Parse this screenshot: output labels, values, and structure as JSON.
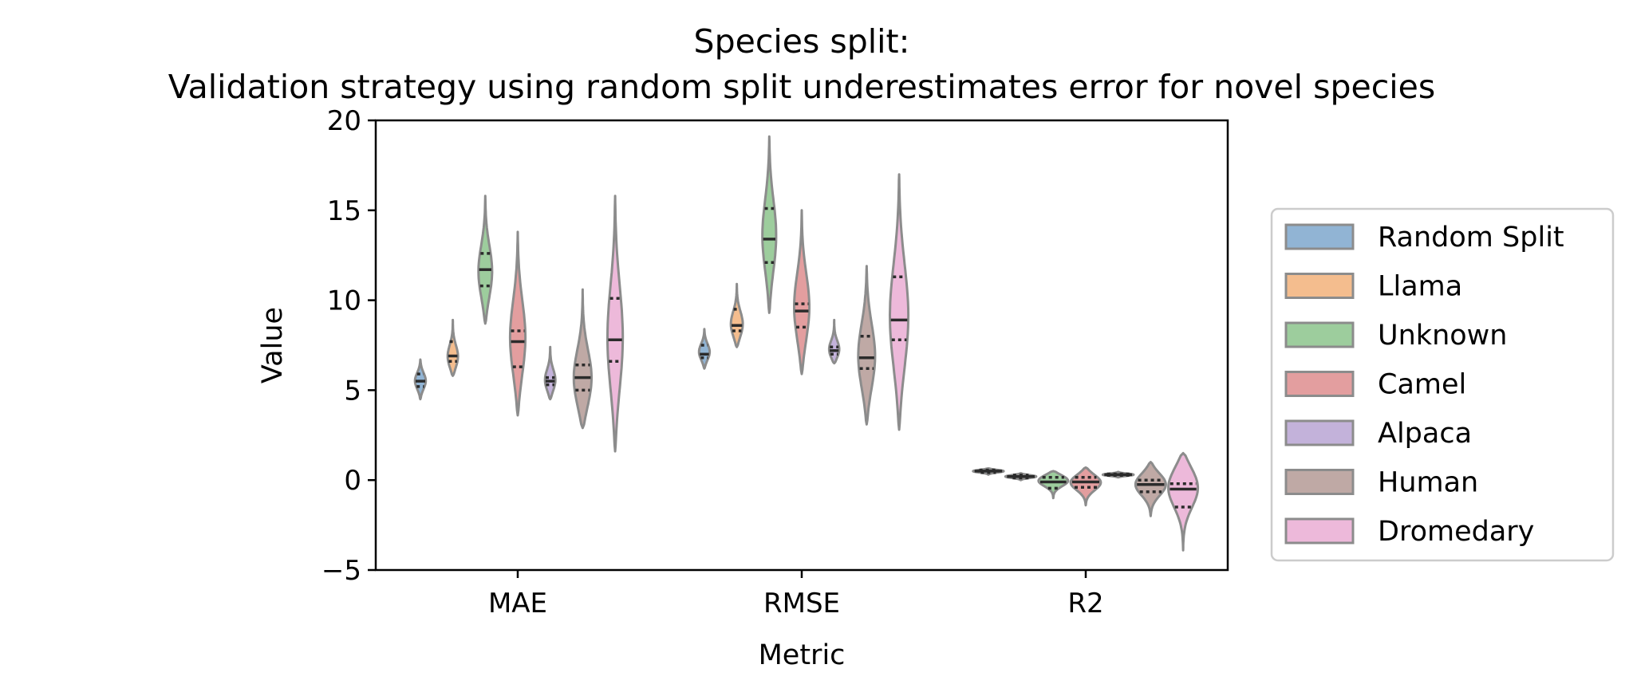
{
  "chart_data": {
    "type": "violin",
    "title_line1": "Species split:",
    "title_line2": "Validation strategy using random split underestimates error for novel species",
    "xlabel": "Metric",
    "ylabel": "Value",
    "categories": [
      "MAE",
      "RMSE",
      "R2"
    ],
    "ylim": [
      -5,
      20
    ],
    "yticks": [
      {
        "value": -5,
        "label": "−5"
      },
      {
        "value": 0,
        "label": "0"
      },
      {
        "value": 5,
        "label": "5"
      },
      {
        "value": 10,
        "label": "10"
      },
      {
        "value": 15,
        "label": "15"
      },
      {
        "value": 20,
        "label": "20"
      }
    ],
    "grid": false,
    "legend_position": "right",
    "series": [
      {
        "name": "Random Split",
        "color": "#7ea7cc",
        "violins": [
          {
            "min": 4.5,
            "max": 6.7,
            "mode": 5.5,
            "q1": 5.2,
            "median": 5.5,
            "q3": 5.9,
            "widthFrac": 0.35
          },
          {
            "min": 6.2,
            "max": 8.4,
            "mode": 7.1,
            "q1": 6.8,
            "median": 7.0,
            "q3": 7.5,
            "widthFrac": 0.35
          },
          {
            "min": 0.3,
            "max": 0.65,
            "mode": 0.5,
            "q1": 0.42,
            "median": 0.5,
            "q3": 0.56,
            "widthFrac": 1.0
          }
        ]
      },
      {
        "name": "Llama",
        "color": "#f2b27a",
        "violins": [
          {
            "min": 5.8,
            "max": 8.9,
            "mode": 6.8,
            "q1": 6.6,
            "median": 6.9,
            "q3": 7.7,
            "widthFrac": 0.35
          },
          {
            "min": 7.4,
            "max": 10.9,
            "mode": 8.6,
            "q1": 8.3,
            "median": 8.6,
            "q3": 9.5,
            "widthFrac": 0.4
          },
          {
            "min": 0.0,
            "max": 0.38,
            "mode": 0.2,
            "q1": 0.12,
            "median": 0.2,
            "q3": 0.28,
            "widthFrac": 1.0
          }
        ]
      },
      {
        "name": "Unknown",
        "color": "#8cc48c",
        "violins": [
          {
            "min": 8.7,
            "max": 15.8,
            "mode": 11.5,
            "q1": 10.8,
            "median": 11.7,
            "q3": 12.6,
            "widthFrac": 0.45
          },
          {
            "min": 9.3,
            "max": 19.1,
            "mode": 13.5,
            "q1": 12.1,
            "median": 13.4,
            "q3": 15.1,
            "widthFrac": 0.45
          },
          {
            "min": -1.0,
            "max": 0.5,
            "mode": 0.0,
            "q1": -0.45,
            "median": -0.1,
            "q3": 0.15,
            "widthFrac": 1.0
          }
        ]
      },
      {
        "name": "Camel",
        "color": "#de8d8e",
        "violins": [
          {
            "min": 3.6,
            "max": 13.8,
            "mode": 7.8,
            "q1": 6.3,
            "median": 7.7,
            "q3": 8.3,
            "widthFrac": 0.5
          },
          {
            "min": 5.9,
            "max": 15.0,
            "mode": 9.5,
            "q1": 8.5,
            "median": 9.4,
            "q3": 9.8,
            "widthFrac": 0.5
          },
          {
            "min": -1.4,
            "max": 0.7,
            "mode": -0.1,
            "q1": -0.4,
            "median": -0.1,
            "q3": 0.15,
            "widthFrac": 1.0
          }
        ]
      },
      {
        "name": "Alpaca",
        "color": "#b9a4d3",
        "violins": [
          {
            "min": 4.5,
            "max": 7.4,
            "mode": 5.5,
            "q1": 5.3,
            "median": 5.5,
            "q3": 5.7,
            "widthFrac": 0.35
          },
          {
            "min": 6.5,
            "max": 8.9,
            "mode": 7.2,
            "q1": 7.0,
            "median": 7.2,
            "q3": 7.4,
            "widthFrac": 0.35
          },
          {
            "min": 0.15,
            "max": 0.45,
            "mode": 0.3,
            "q1": 0.26,
            "median": 0.3,
            "q3": 0.34,
            "widthFrac": 1.0
          }
        ]
      },
      {
        "name": "Human",
        "color": "#b49a95",
        "violins": [
          {
            "min": 2.9,
            "max": 10.6,
            "mode": 5.5,
            "q1": 5.0,
            "median": 5.7,
            "q3": 6.4,
            "widthFrac": 0.6
          },
          {
            "min": 3.1,
            "max": 11.9,
            "mode": 6.8,
            "q1": 6.2,
            "median": 6.8,
            "q3": 8.0,
            "widthFrac": 0.55
          },
          {
            "min": -2.0,
            "max": 1.0,
            "mode": -0.2,
            "q1": -0.65,
            "median": -0.25,
            "q3": 0.0,
            "widthFrac": 1.0
          }
        ]
      },
      {
        "name": "Dromedary",
        "color": "#eaadd4",
        "violins": [
          {
            "min": 1.6,
            "max": 15.8,
            "mode": 7.8,
            "q1": 6.6,
            "median": 7.8,
            "q3": 10.1,
            "widthFrac": 0.5
          },
          {
            "min": 2.8,
            "max": 17.0,
            "mode": 9.0,
            "q1": 7.8,
            "median": 8.9,
            "q3": 11.3,
            "widthFrac": 0.6
          },
          {
            "min": -3.9,
            "max": 1.5,
            "mode": -0.3,
            "q1": -1.5,
            "median": -0.5,
            "q3": -0.2,
            "widthFrac": 1.0
          }
        ]
      }
    ]
  }
}
